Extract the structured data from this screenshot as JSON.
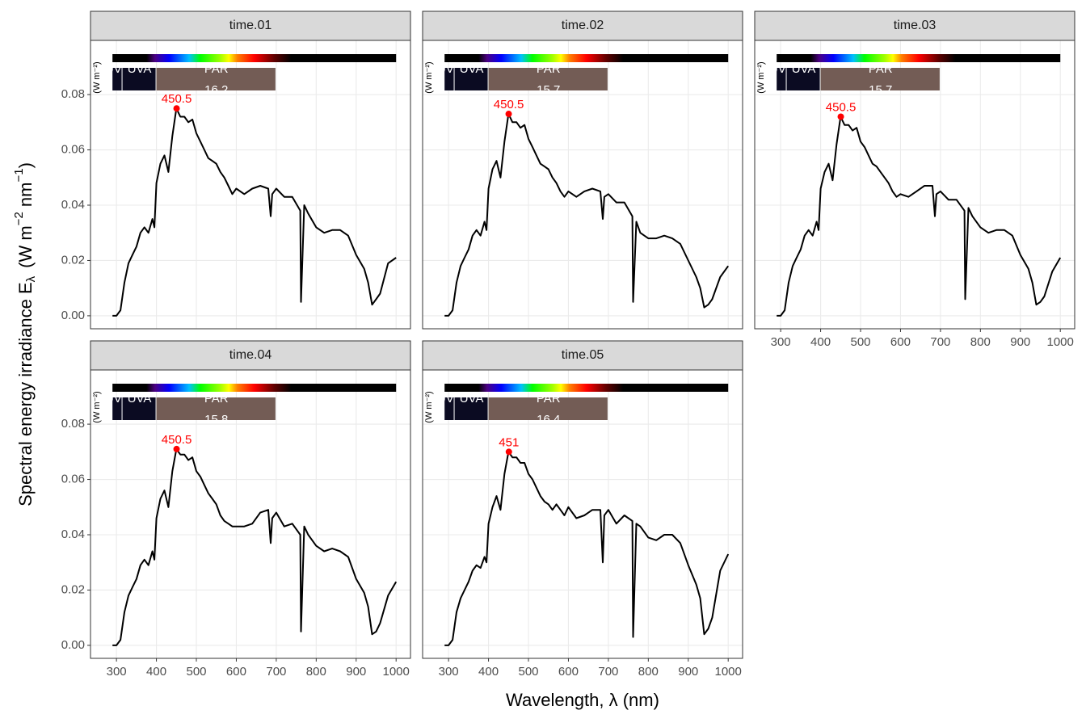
{
  "x_label": "Wavelength, λ (nm)",
  "y_label": {
    "text": "Spectral  energy  irradiance  E",
    "sub": "λ",
    "unit": "(W m",
    "exp1": "−2",
    "unit2": " nm",
    "exp2": "−1",
    "close": ")"
  },
  "chart_data": [
    {
      "type": "line",
      "title": "time.01",
      "color": "#000000",
      "grid": true,
      "xlim": [
        235,
        1036
      ],
      "ylim": [
        -0.0047,
        0.0996
      ],
      "xticks": [
        300,
        400,
        500,
        600,
        700,
        800,
        900,
        1000
      ],
      "yticks": [
        {
          "value": 0,
          "label": "0.00"
        },
        {
          "value": 0.02,
          "label": "0.02"
        },
        {
          "value": 0.04,
          "label": "0.04"
        },
        {
          "value": 0.06,
          "label": "0.06"
        },
        {
          "value": 0.08,
          "label": "0.08"
        }
      ],
      "x": [
        290,
        300,
        310,
        320,
        330,
        340,
        350,
        360,
        370,
        380,
        390,
        395,
        400,
        410,
        420,
        430,
        440,
        450,
        460,
        470,
        480,
        490,
        500,
        510,
        520,
        530,
        540,
        550,
        560,
        570,
        580,
        590,
        600,
        620,
        640,
        660,
        680,
        686,
        690,
        700,
        720,
        740,
        760,
        762,
        770,
        780,
        800,
        820,
        840,
        860,
        880,
        900,
        920,
        930,
        940,
        950,
        960,
        980,
        1000
      ],
      "values": [
        0,
        0,
        0.002,
        0.012,
        0.019,
        0.022,
        0.025,
        0.03,
        0.032,
        0.03,
        0.035,
        0.032,
        0.048,
        0.055,
        0.058,
        0.052,
        0.065,
        0.075,
        0.072,
        0.072,
        0.07,
        0.071,
        0.066,
        0.063,
        0.06,
        0.057,
        0.056,
        0.055,
        0.052,
        0.05,
        0.047,
        0.044,
        0.046,
        0.044,
        0.046,
        0.047,
        0.046,
        0.036,
        0.044,
        0.046,
        0.043,
        0.043,
        0.038,
        0.005,
        0.04,
        0.037,
        0.032,
        0.03,
        0.031,
        0.031,
        0.029,
        0.022,
        0.017,
        0.012,
        0.004,
        0.006,
        0.008,
        0.019,
        0.021
      ],
      "peak": {
        "x": 450.5,
        "y": 0.075,
        "color": "#ff0000"
      },
      "band_unit": "(W m⁻²)",
      "bands": [
        {
          "name": "UVB",
          "range": [
            290,
            315
          ],
          "color": "#0b0b22"
        },
        {
          "name": "UVA",
          "range": [
            315,
            400
          ],
          "color": "#0b0b22"
        },
        {
          "name": "PAR",
          "range": [
            400,
            700
          ],
          "color": "#735c55",
          "value": 16.2
        }
      ]
    },
    {
      "type": "line",
      "title": "time.02",
      "color": "#000000",
      "grid": true,
      "xlim": [
        235,
        1036
      ],
      "ylim": [
        -0.0047,
        0.0996
      ],
      "xticks": [
        300,
        400,
        500,
        600,
        700,
        800,
        900,
        1000
      ],
      "yticks": [
        {
          "value": 0,
          "label": "0.00"
        },
        {
          "value": 0.02,
          "label": "0.02"
        },
        {
          "value": 0.04,
          "label": "0.04"
        },
        {
          "value": 0.06,
          "label": "0.06"
        },
        {
          "value": 0.08,
          "label": "0.08"
        }
      ],
      "x": [
        290,
        300,
        310,
        320,
        330,
        340,
        350,
        360,
        370,
        380,
        390,
        395,
        400,
        410,
        420,
        430,
        440,
        450,
        460,
        470,
        480,
        490,
        500,
        510,
        520,
        530,
        540,
        550,
        560,
        570,
        580,
        590,
        600,
        620,
        640,
        660,
        680,
        686,
        690,
        700,
        720,
        740,
        760,
        762,
        770,
        780,
        800,
        820,
        840,
        860,
        880,
        900,
        920,
        930,
        940,
        950,
        960,
        980,
        1000
      ],
      "values": [
        0,
        0,
        0.002,
        0.012,
        0.018,
        0.021,
        0.024,
        0.029,
        0.031,
        0.029,
        0.034,
        0.031,
        0.046,
        0.053,
        0.056,
        0.05,
        0.063,
        0.073,
        0.07,
        0.07,
        0.068,
        0.069,
        0.064,
        0.061,
        0.058,
        0.055,
        0.054,
        0.053,
        0.05,
        0.048,
        0.045,
        0.043,
        0.045,
        0.043,
        0.045,
        0.046,
        0.045,
        0.035,
        0.043,
        0.044,
        0.041,
        0.041,
        0.036,
        0.005,
        0.034,
        0.03,
        0.028,
        0.028,
        0.029,
        0.028,
        0.026,
        0.02,
        0.014,
        0.01,
        0.003,
        0.004,
        0.006,
        0.014,
        0.018
      ],
      "peak": {
        "x": 450.5,
        "y": 0.073,
        "color": "#ff0000"
      },
      "band_unit": "(W m⁻²)",
      "bands": [
        {
          "name": "UVB",
          "range": [
            290,
            315
          ],
          "color": "#0b0b22"
        },
        {
          "name": "UVA",
          "range": [
            315,
            400
          ],
          "color": "#0b0b22"
        },
        {
          "name": "PAR",
          "range": [
            400,
            700
          ],
          "color": "#735c55",
          "value": 15.7
        }
      ]
    },
    {
      "type": "line",
      "title": "time.03",
      "color": "#000000",
      "grid": true,
      "xlim": [
        235,
        1036
      ],
      "ylim": [
        -0.0047,
        0.0996
      ],
      "xticks": [
        300,
        400,
        500,
        600,
        700,
        800,
        900,
        1000
      ],
      "yticks": [
        {
          "value": 0,
          "label": "0.00"
        },
        {
          "value": 0.02,
          "label": "0.02"
        },
        {
          "value": 0.04,
          "label": "0.04"
        },
        {
          "value": 0.06,
          "label": "0.06"
        },
        {
          "value": 0.08,
          "label": "0.08"
        }
      ],
      "x": [
        290,
        300,
        310,
        320,
        330,
        340,
        350,
        360,
        370,
        380,
        390,
        395,
        400,
        410,
        420,
        430,
        440,
        450,
        460,
        470,
        480,
        490,
        500,
        510,
        520,
        530,
        540,
        550,
        560,
        570,
        580,
        590,
        600,
        620,
        640,
        660,
        680,
        686,
        690,
        700,
        720,
        740,
        760,
        762,
        770,
        780,
        800,
        820,
        840,
        860,
        880,
        900,
        920,
        930,
        940,
        950,
        960,
        980,
        1000
      ],
      "values": [
        0,
        0,
        0.002,
        0.012,
        0.018,
        0.021,
        0.024,
        0.029,
        0.031,
        0.029,
        0.034,
        0.031,
        0.046,
        0.052,
        0.055,
        0.049,
        0.062,
        0.072,
        0.069,
        0.069,
        0.067,
        0.068,
        0.063,
        0.061,
        0.058,
        0.055,
        0.054,
        0.052,
        0.05,
        0.048,
        0.045,
        0.043,
        0.044,
        0.043,
        0.045,
        0.047,
        0.047,
        0.036,
        0.044,
        0.045,
        0.042,
        0.042,
        0.038,
        0.006,
        0.039,
        0.036,
        0.032,
        0.03,
        0.031,
        0.031,
        0.029,
        0.022,
        0.017,
        0.012,
        0.004,
        0.005,
        0.007,
        0.016,
        0.021
      ],
      "peak": {
        "x": 450.5,
        "y": 0.072,
        "color": "#ff0000"
      },
      "band_unit": "(W m⁻²)",
      "bands": [
        {
          "name": "UVB",
          "range": [
            290,
            315
          ],
          "color": "#0b0b22"
        },
        {
          "name": "UVA",
          "range": [
            315,
            400
          ],
          "color": "#0b0b22"
        },
        {
          "name": "PAR",
          "range": [
            400,
            700
          ],
          "color": "#735c55",
          "value": 15.7
        }
      ]
    },
    {
      "type": "line",
      "title": "time.04",
      "color": "#000000",
      "grid": true,
      "xlim": [
        235,
        1036
      ],
      "ylim": [
        -0.0047,
        0.0996
      ],
      "xticks": [
        300,
        400,
        500,
        600,
        700,
        800,
        900,
        1000
      ],
      "yticks": [
        {
          "value": 0,
          "label": "0.00"
        },
        {
          "value": 0.02,
          "label": "0.02"
        },
        {
          "value": 0.04,
          "label": "0.04"
        },
        {
          "value": 0.06,
          "label": "0.06"
        },
        {
          "value": 0.08,
          "label": "0.08"
        }
      ],
      "x": [
        290,
        300,
        310,
        320,
        330,
        340,
        350,
        360,
        370,
        380,
        390,
        395,
        400,
        410,
        420,
        430,
        440,
        450,
        460,
        470,
        480,
        490,
        500,
        510,
        520,
        530,
        540,
        550,
        560,
        570,
        580,
        590,
        600,
        620,
        640,
        660,
        680,
        686,
        690,
        700,
        720,
        740,
        760,
        762,
        770,
        780,
        800,
        820,
        840,
        860,
        880,
        900,
        920,
        930,
        940,
        950,
        960,
        980,
        1000
      ],
      "values": [
        0,
        0,
        0.002,
        0.012,
        0.018,
        0.021,
        0.024,
        0.029,
        0.031,
        0.029,
        0.034,
        0.031,
        0.046,
        0.053,
        0.056,
        0.05,
        0.063,
        0.071,
        0.069,
        0.069,
        0.067,
        0.068,
        0.063,
        0.061,
        0.058,
        0.055,
        0.053,
        0.051,
        0.047,
        0.045,
        0.044,
        0.043,
        0.043,
        0.043,
        0.044,
        0.048,
        0.049,
        0.037,
        0.046,
        0.048,
        0.043,
        0.044,
        0.04,
        0.005,
        0.043,
        0.04,
        0.036,
        0.034,
        0.035,
        0.034,
        0.032,
        0.024,
        0.019,
        0.014,
        0.004,
        0.005,
        0.008,
        0.018,
        0.023
      ],
      "peak": {
        "x": 450.5,
        "y": 0.071,
        "color": "#ff0000"
      },
      "band_unit": "(W m⁻²)",
      "bands": [
        {
          "name": "UVB",
          "range": [
            290,
            315
          ],
          "color": "#0b0b22"
        },
        {
          "name": "UVA",
          "range": [
            315,
            400
          ],
          "color": "#0b0b22"
        },
        {
          "name": "PAR",
          "range": [
            400,
            700
          ],
          "color": "#735c55",
          "value": 15.8
        }
      ]
    },
    {
      "type": "line",
      "title": "time.05",
      "color": "#000000",
      "grid": true,
      "xlim": [
        235,
        1036
      ],
      "ylim": [
        -0.0047,
        0.0996
      ],
      "xticks": [
        300,
        400,
        500,
        600,
        700,
        800,
        900,
        1000
      ],
      "yticks": [
        {
          "value": 0,
          "label": "0.00"
        },
        {
          "value": 0.02,
          "label": "0.02"
        },
        {
          "value": 0.04,
          "label": "0.04"
        },
        {
          "value": 0.06,
          "label": "0.06"
        },
        {
          "value": 0.08,
          "label": "0.08"
        }
      ],
      "x": [
        290,
        300,
        310,
        320,
        330,
        340,
        350,
        360,
        370,
        380,
        390,
        395,
        400,
        410,
        420,
        430,
        440,
        450,
        460,
        470,
        480,
        490,
        500,
        510,
        520,
        530,
        540,
        550,
        560,
        570,
        580,
        590,
        600,
        620,
        640,
        660,
        680,
        686,
        690,
        700,
        720,
        740,
        760,
        762,
        770,
        780,
        800,
        820,
        840,
        860,
        880,
        900,
        920,
        930,
        940,
        950,
        960,
        980,
        1000
      ],
      "values": [
        0,
        0,
        0.002,
        0.012,
        0.017,
        0.02,
        0.023,
        0.027,
        0.029,
        0.028,
        0.032,
        0.03,
        0.044,
        0.05,
        0.054,
        0.049,
        0.062,
        0.07,
        0.068,
        0.068,
        0.066,
        0.066,
        0.062,
        0.06,
        0.057,
        0.054,
        0.052,
        0.051,
        0.049,
        0.051,
        0.049,
        0.047,
        0.05,
        0.046,
        0.047,
        0.049,
        0.049,
        0.03,
        0.047,
        0.049,
        0.044,
        0.047,
        0.045,
        0.003,
        0.044,
        0.043,
        0.039,
        0.038,
        0.04,
        0.04,
        0.037,
        0.029,
        0.022,
        0.017,
        0.004,
        0.006,
        0.01,
        0.027,
        0.033
      ],
      "peak": {
        "x": 451,
        "y": 0.07,
        "color": "#ff0000"
      },
      "band_unit": "(W m⁻²)",
      "bands": [
        {
          "name": "UVB",
          "range": [
            290,
            315
          ],
          "color": "#0b0b22"
        },
        {
          "name": "UVA",
          "range": [
            315,
            400
          ],
          "color": "#0b0b22"
        },
        {
          "name": "PAR",
          "range": [
            400,
            700
          ],
          "color": "#735c55",
          "value": 16.4
        }
      ]
    }
  ]
}
